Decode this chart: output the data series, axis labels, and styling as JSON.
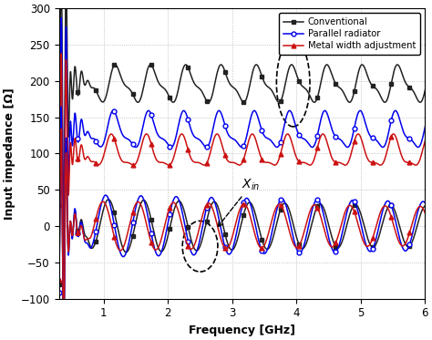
{
  "title": "",
  "xlabel": "Frequency [GHz]",
  "ylabel": "Input impedance [Ω]",
  "xlim": [
    0.3,
    6.0
  ],
  "ylim": [
    -100,
    300
  ],
  "yticks": [
    -100,
    -50,
    0,
    50,
    100,
    150,
    200,
    250,
    300
  ],
  "xticks": [
    1,
    2,
    3,
    4,
    5,
    6
  ],
  "legend": [
    "Conventional",
    "Parallel radiator",
    "Metal width adjustment"
  ],
  "line_colors": [
    "#222222",
    "#0000ee",
    "#cc1111"
  ],
  "figsize": [
    4.74,
    3.73
  ],
  "dpi": 100
}
